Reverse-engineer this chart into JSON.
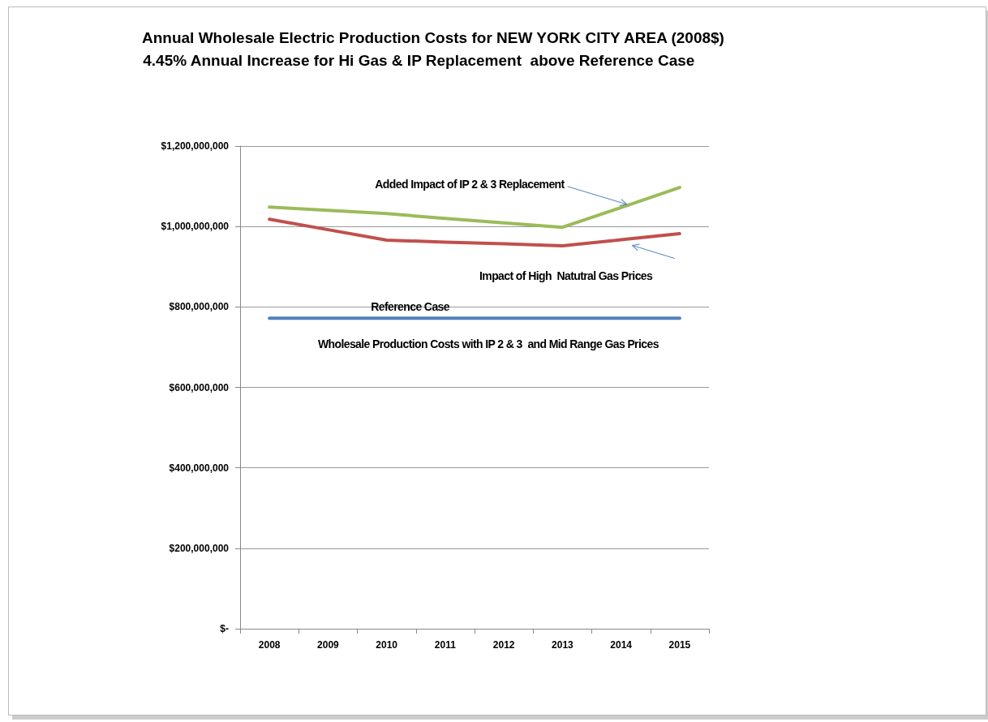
{
  "chart_data": {
    "type": "line",
    "title": "Annual Wholesale Electric Production Costs for NEW YORK CITY AREA (2008$)",
    "subtitle": " 4.45% Annual Increase for Hi Gas & IP Replacement  above Reference Case",
    "categories": [
      "2008",
      "2009",
      "2010",
      "2011",
      "2012",
      "2013",
      "2014",
      "2015"
    ],
    "series": [
      {
        "color": "#9bbb59",
        "values": [
          1048000000,
          1040000000,
          1032000000,
          1020000000,
          1009000000,
          998000000,
          1047000000,
          1097000000
        ]
      },
      {
        "color": "#c0504d",
        "values": [
          1018000000,
          992000000,
          966000000,
          961000000,
          957000000,
          952000000,
          967000000,
          982000000
        ]
      },
      {
        "color": "#4f81bd",
        "values": [
          772000000,
          772000000,
          772000000,
          772000000,
          772000000,
          772000000,
          772000000,
          772000000
        ]
      }
    ],
    "ylim": [
      0,
      1200000000
    ],
    "yticks": [
      {
        "value": 0,
        "label": "$-"
      },
      {
        "value": 200000000,
        "label": "$200,000,000"
      },
      {
        "value": 400000000,
        "label": "$400,000,000"
      },
      {
        "value": 600000000,
        "label": "$600,000,000"
      },
      {
        "value": 800000000,
        "label": "$800,000,000"
      },
      {
        "value": 1000000000,
        "label": "$1,000,000,000"
      },
      {
        "value": 1200000000,
        "label": "$1,200,000,000"
      }
    ],
    "annotations": [
      {
        "text": "Added Impact of IP 2 & 3 Replacement",
        "x": "2014",
        "y": 1047000000
      },
      {
        "text": "Impact of High  Natutral Gas Prices",
        "x": "2014",
        "y": 967000000
      },
      {
        "text": "Reference Case",
        "x": "2010",
        "y": 772000000
      },
      {
        "text": "Wholesale Production Costs with IP 2 & 3  and Mid Range Gas Prices",
        "x": "2011",
        "y": 772000000
      }
    ],
    "grid": "y",
    "marker": "none",
    "line_style": "solid"
  }
}
